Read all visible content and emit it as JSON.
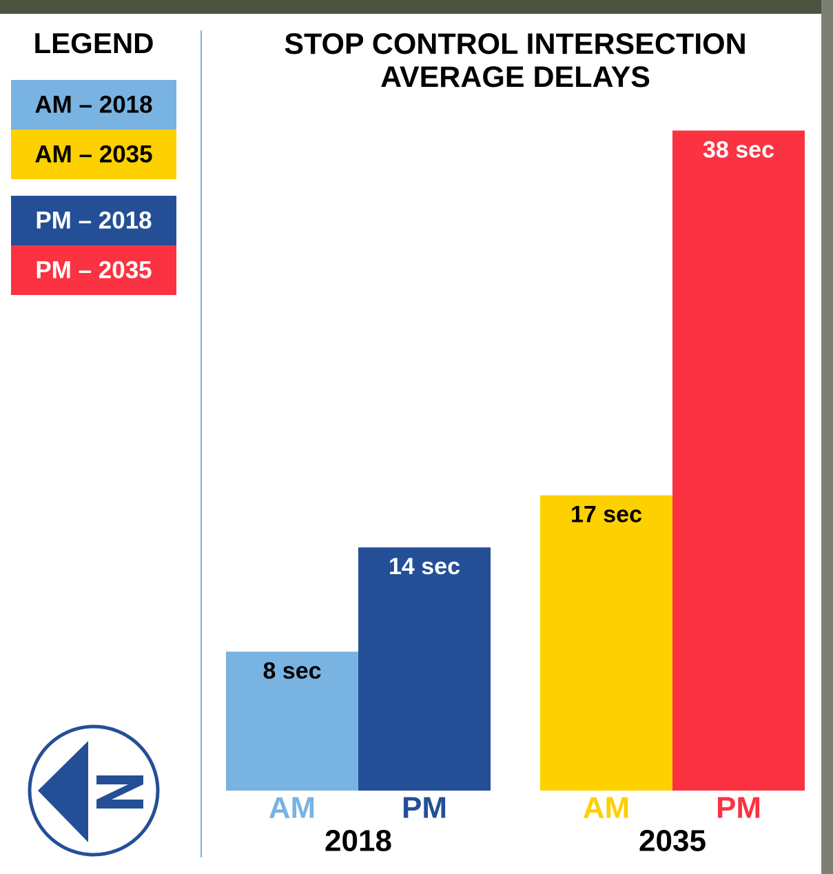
{
  "chart_data": {
    "type": "bar",
    "title": "STOP CONTROL INTERSECTION AVERAGE DELAYS",
    "legend_title": "LEGEND",
    "groups": [
      {
        "label": "2018",
        "categories": [
          "AM",
          "PM"
        ],
        "values": [
          8,
          14
        ],
        "value_labels": [
          "8 sec",
          "14 sec"
        ],
        "colors": [
          "#78b3e2",
          "#244f97"
        ],
        "label_colors": [
          "#000000",
          "#ffffff"
        ],
        "legend": [
          "AM – 2018",
          "PM – 2018"
        ]
      },
      {
        "label": "2035",
        "categories": [
          "AM",
          "PM"
        ],
        "values": [
          17,
          38
        ],
        "value_labels": [
          "17 sec",
          "38 sec"
        ],
        "colors": [
          "#fdd000",
          "#fb3242"
        ],
        "label_colors": [
          "#000000",
          "#ffffff"
        ],
        "legend": [
          "AM – 2035",
          "PM – 2035"
        ]
      }
    ]
  }
}
